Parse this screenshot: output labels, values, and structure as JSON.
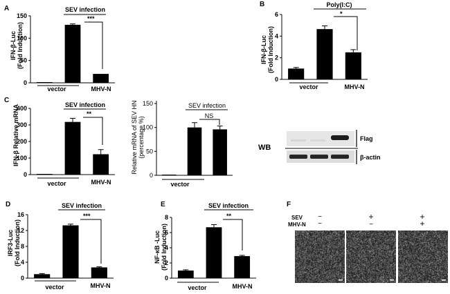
{
  "chart_data": [
    {
      "panel": "A",
      "type": "bar",
      "categories": [
        "",
        "",
        ""
      ],
      "values": [
        1,
        130,
        20
      ],
      "errors": [
        0,
        2,
        0
      ],
      "ylabel": [
        "IFN-β-Luc",
        "(Fold Induction)"
      ],
      "ylim": [
        0,
        150
      ],
      "yticks": [
        "0",
        "50",
        "100",
        "150"
      ],
      "top_label": "SEV infection",
      "significance": "***",
      "group_labels": [
        "vector",
        "MHV-N"
      ]
    },
    {
      "panel": "B",
      "type": "bar",
      "categories": [
        "",
        "",
        ""
      ],
      "values": [
        1.0,
        4.65,
        2.5
      ],
      "errors": [
        0.1,
        0.3,
        0.25
      ],
      "ylabel": [
        "IFN-β-Luc",
        "(Fold Induction)"
      ],
      "ylim": [
        0,
        6
      ],
      "yticks": [
        "0",
        "2",
        "4",
        "6"
      ],
      "top_label": "Poly(I:C)",
      "significance": "*",
      "group_labels": [
        "vector",
        "MHV-N"
      ]
    },
    {
      "panel": "C",
      "type": "bar",
      "categories": [
        "",
        "",
        ""
      ],
      "values": [
        2,
        318,
        123
      ],
      "errors": [
        0,
        22,
        28
      ],
      "ylabel": [
        "IFN-β Relative mRNA"
      ],
      "ylim": [
        0,
        400
      ],
      "yticks": [
        "0",
        "100",
        "200",
        "300",
        "400"
      ],
      "top_label": "SEV infection",
      "significance": "**",
      "group_labels": [
        "vector",
        "MHV-N"
      ]
    },
    {
      "panel": "",
      "type": "bar",
      "categories": [
        "",
        "",
        ""
      ],
      "values": [
        0,
        100,
        96
      ],
      "errors": [
        0,
        10,
        7
      ],
      "ylabel": [
        "Relative mRNA of SEV HN",
        "(percentage %)"
      ],
      "ylim": [
        0,
        150
      ],
      "yticks": [
        "0",
        "50",
        "100",
        "150"
      ],
      "top_label": "SEV infection",
      "significance": "NS",
      "group_labels": [
        "vector"
      ]
    },
    {
      "panel": "D",
      "type": "bar",
      "categories": [
        "",
        "",
        ""
      ],
      "values": [
        1.0,
        13.3,
        2.7
      ],
      "errors": [
        0.15,
        0.3,
        0.15
      ],
      "ylabel": [
        "IRF3-Luc",
        "(Fold Induction)"
      ],
      "ylim": [
        0,
        16
      ],
      "yticks": [
        "0",
        "4",
        "8",
        "12",
        "16"
      ],
      "top_label": "SEV infection",
      "significance": "***",
      "group_labels": [
        "vector",
        "MHV-N"
      ]
    },
    {
      "panel": "E",
      "type": "bar",
      "categories": [
        "",
        "",
        ""
      ],
      "values": [
        1.0,
        6.7,
        2.9
      ],
      "errors": [
        0.1,
        0.35,
        0.1
      ],
      "ylabel": [
        "NF-κB -Luc",
        "(Fold Induction)"
      ],
      "ylim": [
        0,
        8
      ],
      "yticks": [
        "0",
        "2",
        "4",
        "6",
        "8"
      ],
      "top_label": "SEV infection",
      "significance": "**",
      "group_labels": [
        "vector",
        "MHV-N"
      ]
    }
  ],
  "western_blot": {
    "group_label": "WB",
    "bands": [
      "Flag",
      "β-actin"
    ]
  },
  "panel_f": {
    "panel": "F",
    "row_labels": [
      "SEV",
      "MHV-N"
    ],
    "conditions": [
      [
        "−",
        "−"
      ],
      [
        "+",
        "−"
      ],
      [
        "+",
        "+"
      ]
    ]
  },
  "colors": {
    "bar": "#000000",
    "background": "#ffffff"
  }
}
